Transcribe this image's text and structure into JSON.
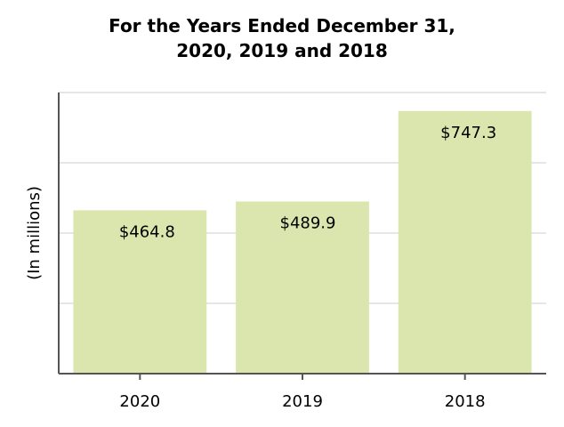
{
  "chart_data": {
    "type": "bar",
    "title_lines": [
      "For the Years Ended December 31,",
      "2020, 2019 and 2018"
    ],
    "ylabel": "(In millions)",
    "xlabel": "",
    "categories": [
      "2020",
      "2019",
      "2018"
    ],
    "values": [
      464.8,
      489.9,
      747.3
    ],
    "data_labels": [
      "$464.8",
      "$489.9",
      "$747.3"
    ],
    "ylim": [
      0,
      800
    ],
    "y_gridlines": [
      200,
      400,
      600,
      800
    ],
    "y_tick_labels_shown": false,
    "grid": true,
    "legend": "none",
    "bar_color": "#dbe5ae"
  }
}
